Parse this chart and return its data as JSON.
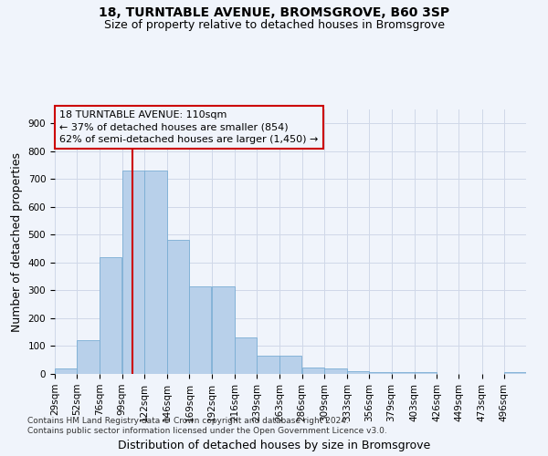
{
  "title": "18, TURNTABLE AVENUE, BROMSGROVE, B60 3SP",
  "subtitle": "Size of property relative to detached houses in Bromsgrove",
  "xlabel": "Distribution of detached houses by size in Bromsgrove",
  "ylabel": "Number of detached properties",
  "bar_edges": [
    29,
    52,
    76,
    99,
    122,
    146,
    169,
    192,
    216,
    239,
    263,
    286,
    309,
    333,
    356,
    379,
    403,
    426,
    449,
    473,
    496
  ],
  "bar_heights": [
    20,
    120,
    420,
    730,
    730,
    480,
    315,
    315,
    130,
    65,
    65,
    22,
    20,
    10,
    5,
    5,
    5,
    0,
    0,
    0,
    8
  ],
  "bar_color": "#b8d0ea",
  "bar_edgecolor": "#7aadd4",
  "grid_color": "#d0d8e8",
  "background_color": "#f0f4fb",
  "vline_x": 110,
  "vline_color": "#cc0000",
  "annotation_text": "18 TURNTABLE AVENUE: 110sqm\n← 37% of detached houses are smaller (854)\n62% of semi-detached houses are larger (1,450) →",
  "annotation_box_color": "#cc0000",
  "ylim": [
    0,
    950
  ],
  "yticks": [
    0,
    100,
    200,
    300,
    400,
    500,
    600,
    700,
    800,
    900
  ],
  "footer": "Contains HM Land Registry data © Crown copyright and database right 2024.\nContains public sector information licensed under the Open Government Licence v3.0.",
  "title_fontsize": 10,
  "subtitle_fontsize": 9,
  "tick_fontsize": 7.5,
  "label_fontsize": 9,
  "footer_fontsize": 6.5
}
